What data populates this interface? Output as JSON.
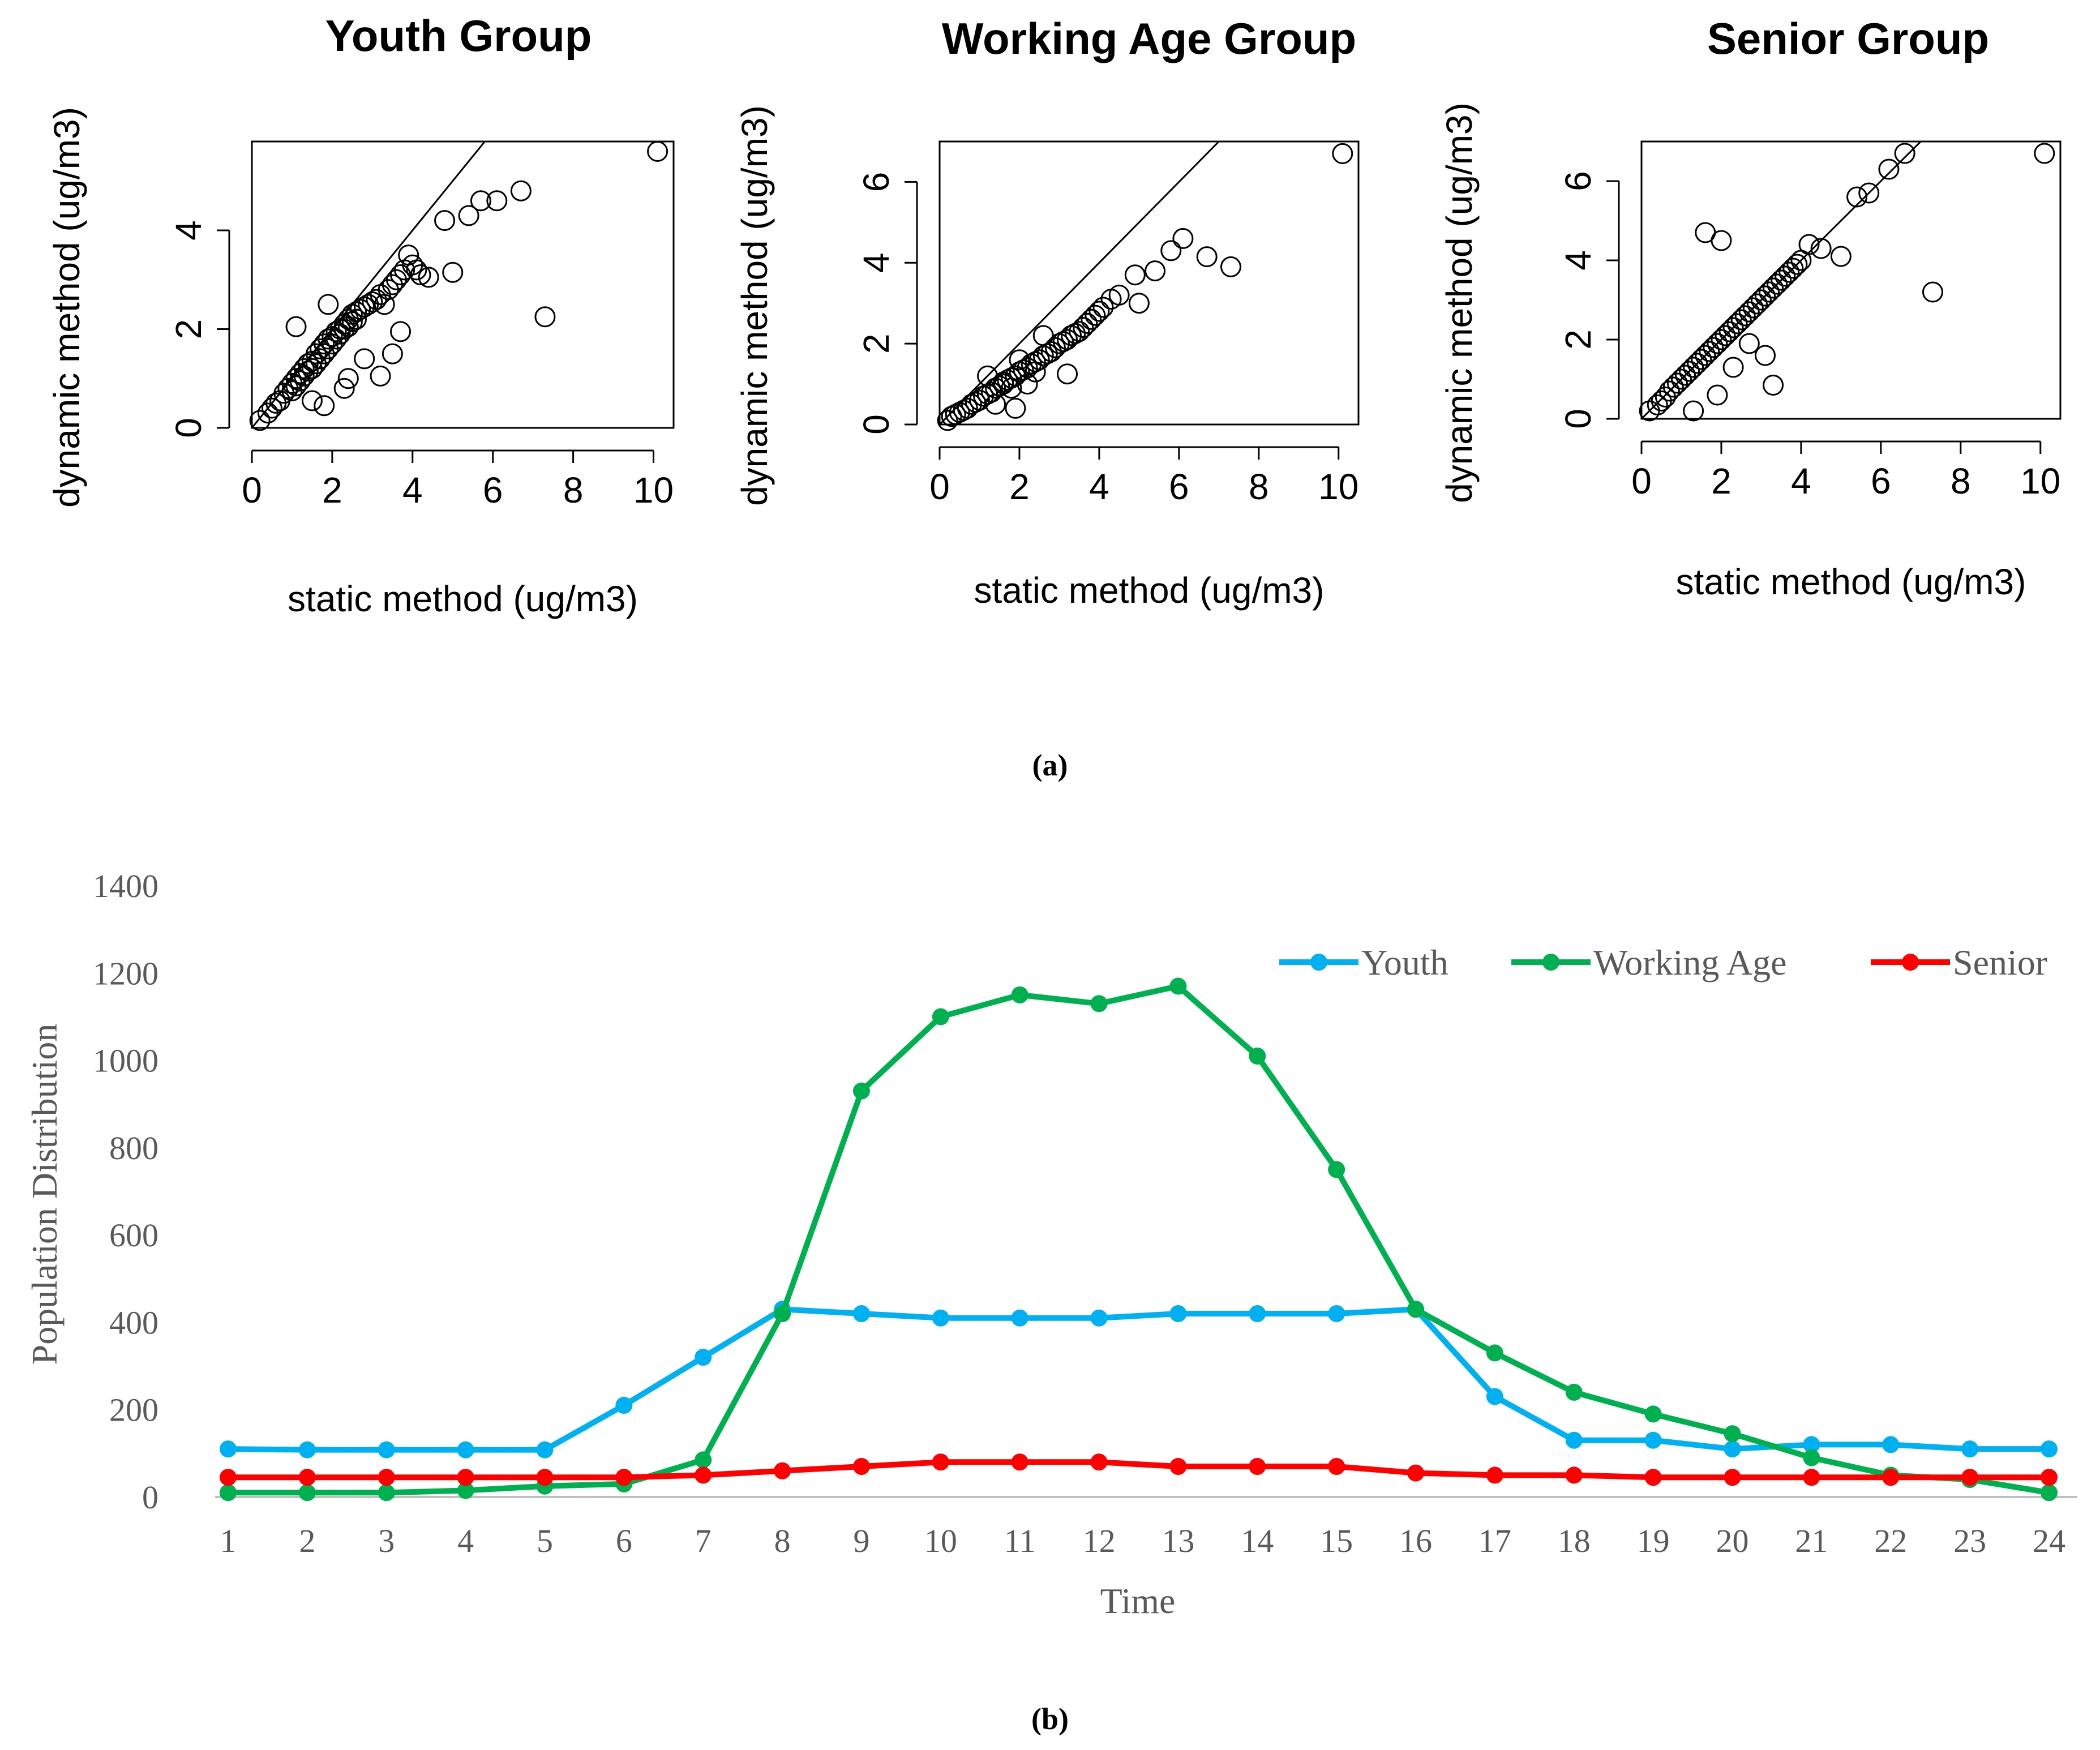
{
  "panel_a_label": "(a)",
  "panel_b_label": "(b)",
  "chart_data": [
    {
      "type": "scatter",
      "title": "Youth Group",
      "xlabel": "static method (ug/m3)",
      "ylabel": "dynamic method (ug/m3)",
      "xlim": [
        0,
        10.5
      ],
      "ylim": [
        0,
        5.8
      ],
      "xticks": [
        0,
        2,
        4,
        6,
        8,
        10
      ],
      "yticks": [
        0,
        2,
        4
      ],
      "reference_line": "y = x",
      "x": [
        0.2,
        0.4,
        0.5,
        0.6,
        0.7,
        0.8,
        0.9,
        1.0,
        1.0,
        1.1,
        1.1,
        1.2,
        1.2,
        1.3,
        1.3,
        1.4,
        1.4,
        1.5,
        1.5,
        1.6,
        1.6,
        1.7,
        1.7,
        1.8,
        1.8,
        1.9,
        1.9,
        2.0,
        2.0,
        2.1,
        2.1,
        2.2,
        2.2,
        2.3,
        2.3,
        2.4,
        2.4,
        2.5,
        2.5,
        2.6,
        2.6,
        2.7,
        2.8,
        2.9,
        3.0,
        3.1,
        3.2,
        3.3,
        3.4,
        3.5,
        3.6,
        3.7,
        3.8,
        3.9,
        4.0,
        4.1,
        4.2,
        4.4,
        4.8,
        5.0,
        5.4,
        5.7,
        6.1,
        6.7,
        7.3,
        10.1,
        1.1,
        1.9,
        1.8,
        2.3,
        2.4,
        3.2,
        3.5,
        3.7,
        1.5,
        2.8
      ],
      "y": [
        0.15,
        0.3,
        0.4,
        0.5,
        0.55,
        0.7,
        0.8,
        0.9,
        0.75,
        1.0,
        0.85,
        1.1,
        0.95,
        1.2,
        1.05,
        1.3,
        1.15,
        1.35,
        1.2,
        1.5,
        1.3,
        1.6,
        1.4,
        1.7,
        1.5,
        1.8,
        1.6,
        1.85,
        1.7,
        1.95,
        1.8,
        2.0,
        1.9,
        2.1,
        2.0,
        2.2,
        2.05,
        2.3,
        2.15,
        2.35,
        2.2,
        2.4,
        2.45,
        2.5,
        2.55,
        2.6,
        2.7,
        2.5,
        2.8,
        2.9,
        3.0,
        3.1,
        3.2,
        3.5,
        3.3,
        3.2,
        3.1,
        3.05,
        4.2,
        3.15,
        4.3,
        4.6,
        4.6,
        4.8,
        2.25,
        5.6,
        2.05,
        2.5,
        0.45,
        0.8,
        1.0,
        1.05,
        1.5,
        1.95,
        0.55,
        1.4
      ]
    },
    {
      "type": "scatter",
      "title": "Working Age Group",
      "xlabel": "static method (ug/m3)",
      "ylabel": "dynamic method (ug/m3)",
      "xlim": [
        0,
        10.5
      ],
      "ylim": [
        0,
        7.0
      ],
      "xticks": [
        0,
        2,
        4,
        6,
        8,
        10
      ],
      "yticks": [
        0,
        2,
        4,
        6
      ],
      "reference_line": "y = x",
      "x": [
        0.2,
        0.3,
        0.4,
        0.5,
        0.6,
        0.7,
        0.8,
        0.9,
        1.0,
        1.1,
        1.2,
        1.3,
        1.4,
        1.5,
        1.6,
        1.7,
        1.8,
        1.9,
        2.0,
        2.1,
        2.2,
        2.3,
        2.4,
        2.5,
        2.6,
        2.7,
        2.8,
        2.9,
        3.0,
        3.1,
        3.2,
        3.3,
        3.4,
        3.5,
        3.6,
        3.7,
        3.8,
        3.9,
        4.0,
        4.1,
        4.3,
        4.5,
        4.9,
        5.0,
        5.4,
        5.8,
        6.1,
        6.7,
        7.3,
        10.1,
        1.2,
        1.4,
        1.6,
        1.8,
        2.0,
        2.2,
        2.4,
        2.6,
        1.9,
        3.2
      ],
      "y": [
        0.1,
        0.2,
        0.25,
        0.3,
        0.35,
        0.4,
        0.5,
        0.55,
        0.6,
        0.7,
        0.75,
        0.8,
        0.9,
        0.95,
        1.0,
        1.1,
        1.15,
        1.2,
        1.3,
        1.35,
        1.4,
        1.5,
        1.55,
        1.6,
        1.7,
        1.75,
        1.8,
        1.9,
        2.0,
        2.05,
        2.1,
        2.2,
        2.25,
        2.3,
        2.4,
        2.5,
        2.6,
        2.7,
        2.8,
        2.9,
        3.1,
        3.2,
        3.7,
        3.0,
        3.8,
        4.3,
        4.6,
        4.15,
        3.9,
        6.7,
        1.2,
        0.5,
        1.05,
        0.9,
        1.6,
        1.0,
        1.3,
        2.2,
        0.4,
        1.25
      ]
    },
    {
      "type": "scatter",
      "title": "Senior Group",
      "xlabel": "static method (ug/m3)",
      "ylabel": "dynamic method (ug/m3)",
      "xlim": [
        0,
        10.5
      ],
      "ylim": [
        0,
        7.0
      ],
      "xticks": [
        0,
        2,
        4,
        6,
        8,
        10
      ],
      "yticks": [
        0,
        2,
        4,
        6
      ],
      "reference_line": "y = x",
      "x": [
        0.2,
        0.4,
        0.5,
        0.6,
        0.7,
        0.8,
        0.9,
        1.0,
        1.1,
        1.2,
        1.3,
        1.4,
        1.5,
        1.6,
        1.7,
        1.8,
        1.9,
        2.0,
        2.1,
        2.2,
        2.3,
        2.4,
        2.5,
        2.6,
        2.7,
        2.8,
        2.9,
        3.0,
        3.1,
        3.2,
        3.3,
        3.4,
        3.5,
        3.6,
        3.7,
        3.8,
        3.9,
        4.0,
        4.2,
        4.5,
        5.0,
        5.4,
        5.7,
        6.2,
        6.6,
        10.1,
        7.3,
        1.6,
        2.0,
        1.3,
        1.9,
        3.1,
        3.3,
        2.3,
        2.7
      ],
      "y": [
        0.2,
        0.35,
        0.45,
        0.55,
        0.7,
        0.8,
        0.9,
        1.0,
        1.1,
        1.2,
        1.3,
        1.4,
        1.5,
        1.6,
        1.7,
        1.8,
        1.9,
        2.0,
        2.1,
        2.2,
        2.3,
        2.4,
        2.5,
        2.6,
        2.7,
        2.8,
        2.9,
        3.0,
        3.1,
        3.2,
        3.3,
        3.4,
        3.5,
        3.6,
        3.7,
        3.8,
        3.9,
        4.0,
        4.4,
        4.3,
        4.1,
        5.6,
        5.7,
        6.3,
        6.7,
        6.7,
        3.2,
        4.7,
        4.5,
        0.2,
        0.6,
        1.6,
        0.85,
        1.3,
        1.9
      ]
    },
    {
      "type": "line",
      "xlabel": "Time",
      "ylabel": "Population Distribution",
      "ylim": [
        0,
        1400
      ],
      "yticks": [
        0,
        200,
        400,
        600,
        800,
        1000,
        1200,
        1400
      ],
      "categories": [
        "1",
        "2",
        "3",
        "4",
        "5",
        "6",
        "7",
        "8",
        "9",
        "10",
        "11",
        "12",
        "13",
        "14",
        "15",
        "16",
        "17",
        "18",
        "19",
        "20",
        "21",
        "22",
        "23",
        "24"
      ],
      "legend_position": "top-right",
      "series": [
        {
          "name": "Youth",
          "color": "#00B0F0",
          "values": [
            110,
            108,
            108,
            108,
            108,
            210,
            320,
            430,
            420,
            410,
            410,
            410,
            420,
            420,
            420,
            430,
            230,
            130,
            130,
            110,
            120,
            120,
            110,
            110
          ]
        },
        {
          "name": "Working Age",
          "color": "#00B050",
          "values": [
            10,
            10,
            10,
            15,
            25,
            30,
            85,
            420,
            930,
            1100,
            1150,
            1130,
            1170,
            1010,
            750,
            430,
            330,
            240,
            190,
            145,
            90,
            50,
            40,
            10
          ]
        },
        {
          "name": "Senior",
          "color": "#FF0000",
          "values": [
            45,
            45,
            45,
            45,
            45,
            45,
            50,
            60,
            70,
            80,
            80,
            80,
            70,
            70,
            70,
            55,
            50,
            50,
            45,
            45,
            45,
            45,
            45,
            45
          ]
        }
      ]
    }
  ]
}
